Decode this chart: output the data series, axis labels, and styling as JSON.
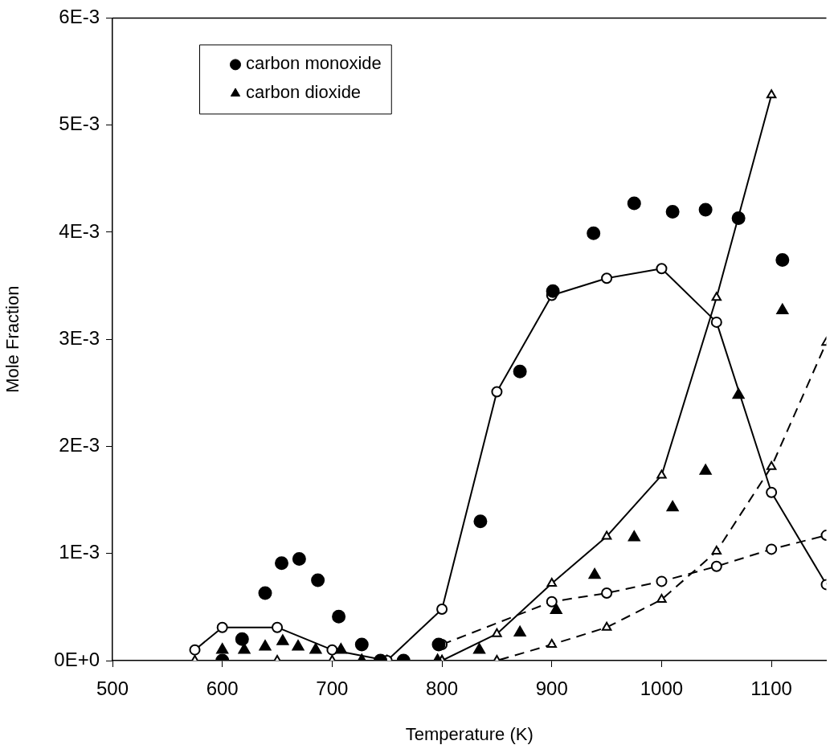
{
  "chart_data": {
    "type": "scatter",
    "xlabel": "Temperature (K)",
    "ylabel": "Mole Fraction",
    "xlim": [
      500,
      1150
    ],
    "xticks": [
      500,
      600,
      700,
      800,
      900,
      1000,
      1100
    ],
    "ylim": [
      0,
      0.006
    ],
    "yticks": [
      {
        "value": 0,
        "label": "0E+0"
      },
      {
        "value": 0.001,
        "label": "1E-3"
      },
      {
        "value": 0.002,
        "label": "2E-3"
      },
      {
        "value": 0.003,
        "label": "3E-3"
      },
      {
        "value": 0.004,
        "label": "4E-3"
      },
      {
        "value": 0.005,
        "label": "5E-3"
      },
      {
        "value": 0.006,
        "label": "6E-3"
      }
    ],
    "grid": false,
    "legend": "top left",
    "series": [
      {
        "name": "carbon monoxide",
        "type": "scatter",
        "marker": "circle",
        "color": "#000000",
        "x": [
          600,
          618,
          639,
          654,
          670,
          687,
          706,
          727,
          744,
          765,
          797,
          835,
          871,
          901,
          938,
          975,
          1010,
          1040,
          1070,
          1110
        ],
        "values": [
          0.0,
          0.0002,
          0.00063,
          0.00091,
          0.00095,
          0.00075,
          0.00041,
          0.00015,
          0.0,
          0.0,
          0.00015,
          0.0013,
          0.0027,
          0.00345,
          0.00399,
          0.00427,
          0.00419,
          0.00421,
          0.00413,
          0.00374
        ]
      },
      {
        "name": "carbon dioxide",
        "type": "scatter",
        "marker": "triangle",
        "color": "#000000",
        "x": [
          600,
          620,
          639,
          655,
          669,
          685,
          708,
          727,
          796,
          834,
          871,
          904,
          939,
          975,
          1010,
          1040,
          1070,
          1110
        ],
        "values": [
          0.0001,
          0.0001,
          0.00013,
          0.00018,
          0.00013,
          0.0001,
          0.0001,
          0.0,
          0.0,
          0.0001,
          0.00026,
          0.00047,
          0.0008,
          0.00115,
          0.00143,
          0.00177,
          0.00248,
          0.00327
        ]
      },
      {
        "type": "line",
        "marker": "circle",
        "line_style": "solid",
        "color": "#000000",
        "x": [
          575,
          600,
          650,
          700,
          750,
          800,
          850,
          900,
          950,
          1000,
          1050,
          1100,
          1150
        ],
        "values": [
          0.0001,
          0.00031,
          0.00031,
          0.0001,
          0.0,
          0.00048,
          0.00251,
          0.00341,
          0.00357,
          0.00366,
          0.00316,
          0.00157,
          0.00071
        ]
      },
      {
        "type": "line",
        "marker": "triangle",
        "line_style": "solid",
        "color": "#000000",
        "x": [
          575,
          650,
          700,
          750,
          800,
          850,
          900,
          950,
          1000,
          1050,
          1100
        ],
        "values": [
          0.0,
          0.0,
          0.0,
          0.0,
          0.0,
          0.00025,
          0.00072,
          0.00116,
          0.00173,
          0.00339,
          0.00528
        ]
      },
      {
        "type": "line",
        "marker": "circle",
        "line_style": "dashed",
        "color": "#000000",
        "x": [
          800,
          900,
          950,
          1000,
          1050,
          1100,
          1150
        ],
        "values": [
          0.00015,
          0.00055,
          0.00063,
          0.00074,
          0.00088,
          0.00104,
          0.00117
        ]
      },
      {
        "type": "line",
        "marker": "triangle",
        "line_style": "dashed",
        "color": "#000000",
        "x": [
          750,
          800,
          850,
          900,
          950,
          1000,
          1050,
          1100,
          1150
        ],
        "values": [
          0.0,
          0.0,
          0.0,
          0.00015,
          0.00031,
          0.00057,
          0.00102,
          0.00181,
          0.00297
        ]
      }
    ]
  }
}
